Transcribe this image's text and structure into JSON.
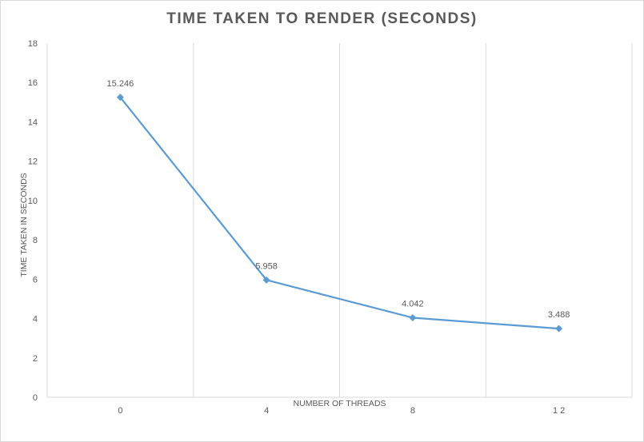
{
  "chart_data": {
    "type": "line",
    "title": "TIME TAKEN TO RENDER (SECONDS)",
    "xlabel": "NUMBER OF THREADS",
    "ylabel": "TIME TAKEN IN SECONDS",
    "categories": [
      "0",
      "4",
      "8",
      "1 2"
    ],
    "series": [
      {
        "values": [
          15.246,
          5.958,
          4.042,
          3.488
        ],
        "data_labels": [
          "15.246",
          "5.958",
          "4.042",
          "3.488"
        ],
        "color": "#5b9bd5",
        "marker": "diamond"
      }
    ],
    "ylim": [
      0,
      18
    ],
    "yticks": [
      "0",
      "2",
      "4",
      "6",
      "8",
      "10",
      "12",
      "14",
      "16",
      "18"
    ],
    "grid": "vertical",
    "legend": "none"
  }
}
